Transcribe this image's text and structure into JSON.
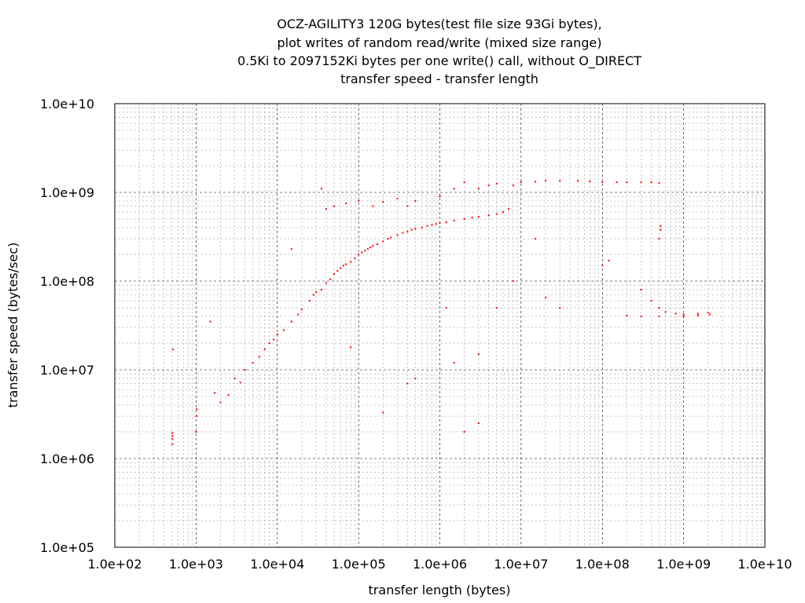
{
  "chart_data": {
    "type": "scatter",
    "title_lines": [
      "OCZ-AGILITY3 120G bytes(test file size 93Gi bytes),",
      "plot writes of random read/write (mixed size range)",
      "0.5Ki to 2097152Ki bytes per one write() call, without O_DIRECT",
      "transfer speed - transfer length"
    ],
    "xlabel": "transfer length (bytes)",
    "ylabel": "transfer speed (bytes/sec)",
    "xscale": "log",
    "yscale": "log",
    "xlim": [
      100,
      10000000000
    ],
    "ylim": [
      100000,
      10000000000
    ],
    "x_ticks": [
      {
        "value": 100,
        "label": "1.0e+02"
      },
      {
        "value": 1000,
        "label": "1.0e+03"
      },
      {
        "value": 10000,
        "label": "1.0e+04"
      },
      {
        "value": 100000,
        "label": "1.0e+05"
      },
      {
        "value": 1000000,
        "label": "1.0e+06"
      },
      {
        "value": 10000000,
        "label": "1.0e+07"
      },
      {
        "value": 100000000,
        "label": "1.0e+08"
      },
      {
        "value": 1000000000,
        "label": "1.0e+09"
      },
      {
        "value": 10000000000,
        "label": "1.0e+10"
      }
    ],
    "y_ticks": [
      {
        "value": 100000,
        "label": "1.0e+05"
      },
      {
        "value": 1000000,
        "label": "1.0e+06"
      },
      {
        "value": 10000000,
        "label": "1.0e+07"
      },
      {
        "value": 100000000,
        "label": "1.0e+08"
      },
      {
        "value": 1000000000,
        "label": "1.0e+09"
      },
      {
        "value": 10000000000,
        "label": "1.0e+10"
      }
    ],
    "grid": true,
    "point_color": "#ff0000",
    "series": [
      {
        "points": [
          [
            512,
            1800000
          ],
          [
            512,
            1650000
          ],
          [
            512,
            1950000
          ],
          [
            512,
            1450000
          ],
          [
            520,
            17000000
          ],
          [
            1000,
            2000000
          ],
          [
            1010,
            3000000
          ],
          [
            1020,
            3600000
          ],
          [
            1500,
            35000000
          ],
          [
            1700,
            5500000
          ],
          [
            2000,
            4300000
          ],
          [
            2500,
            5200000
          ],
          [
            3000,
            8000000
          ],
          [
            3500,
            7200000
          ],
          [
            4000,
            10000000
          ],
          [
            5000,
            12000000
          ],
          [
            6000,
            14000000
          ],
          [
            7000,
            17000000
          ],
          [
            8000,
            20000000
          ],
          [
            9000,
            22000000
          ],
          [
            10000,
            25000000
          ],
          [
            12000,
            28000000
          ],
          [
            15000,
            35000000
          ],
          [
            15000,
            230000000
          ],
          [
            18000,
            42000000
          ],
          [
            20000,
            48000000
          ],
          [
            25000,
            60000000
          ],
          [
            28000,
            70000000
          ],
          [
            30000,
            75000000
          ],
          [
            35000,
            80000000
          ],
          [
            35000,
            1100000000
          ],
          [
            40000,
            95000000
          ],
          [
            40000,
            650000000
          ],
          [
            45000,
            105000000
          ],
          [
            50000,
            120000000
          ],
          [
            50000,
            700000000
          ],
          [
            55000,
            130000000
          ],
          [
            60000,
            140000000
          ],
          [
            65000,
            150000000
          ],
          [
            70000,
            155000000
          ],
          [
            70000,
            750000000
          ],
          [
            80000,
            165000000
          ],
          [
            90000,
            180000000
          ],
          [
            100000,
            200000000
          ],
          [
            100000,
            800000000
          ],
          [
            110000,
            210000000
          ],
          [
            120000,
            220000000
          ],
          [
            130000,
            230000000
          ],
          [
            140000,
            240000000
          ],
          [
            150000,
            250000000
          ],
          [
            150000,
            700000000
          ],
          [
            170000,
            260000000
          ],
          [
            200000,
            280000000
          ],
          [
            200000,
            780000000
          ],
          [
            230000,
            300000000
          ],
          [
            250000,
            310000000
          ],
          [
            300000,
            330000000
          ],
          [
            300000,
            850000000
          ],
          [
            350000,
            350000000
          ],
          [
            400000,
            360000000
          ],
          [
            400000,
            700000000
          ],
          [
            450000,
            380000000
          ],
          [
            500000,
            390000000
          ],
          [
            500000,
            800000000
          ],
          [
            600000,
            400000000
          ],
          [
            700000,
            420000000
          ],
          [
            800000,
            430000000
          ],
          [
            900000,
            440000000
          ],
          [
            1000000,
            450000000
          ],
          [
            1000000,
            900000000
          ],
          [
            1200000,
            460000000
          ],
          [
            1500000,
            480000000
          ],
          [
            1500000,
            1100000000
          ],
          [
            2000000,
            500000000
          ],
          [
            2000000,
            1300000000
          ],
          [
            2500000,
            520000000
          ],
          [
            3000000,
            530000000
          ],
          [
            3000000,
            1100000000
          ],
          [
            4000000,
            550000000
          ],
          [
            4000000,
            1200000000
          ],
          [
            5000000,
            570000000
          ],
          [
            5000000,
            1250000000
          ],
          [
            6000000,
            600000000
          ],
          [
            7000000,
            650000000
          ],
          [
            8000000,
            1200000000
          ],
          [
            10000000,
            1300000000
          ],
          [
            15000000,
            1320000000
          ],
          [
            20000000,
            1350000000
          ],
          [
            30000000,
            1350000000
          ],
          [
            50000000,
            1350000000
          ],
          [
            70000000,
            1330000000
          ],
          [
            100000000,
            1300000000
          ],
          [
            150000000,
            1300000000
          ],
          [
            200000000,
            1300000000
          ],
          [
            300000000,
            1300000000
          ],
          [
            400000000,
            1300000000
          ],
          [
            500000000,
            1280000000
          ],
          [
            520000000,
            420000000
          ],
          [
            520000000,
            380000000
          ],
          [
            500000000,
            300000000
          ],
          [
            300000000,
            80000000
          ],
          [
            400000000,
            60000000
          ],
          [
            500000000,
            50000000
          ],
          [
            600000000,
            45000000
          ],
          [
            800000000,
            43000000
          ],
          [
            1000000000,
            42000000
          ],
          [
            1500000000,
            43000000
          ],
          [
            2000000000,
            44000000
          ],
          [
            2100000000,
            42000000
          ],
          [
            200000000,
            41000000
          ],
          [
            300000000,
            40000000
          ],
          [
            500000000,
            40000000
          ],
          [
            1000000000,
            40000000
          ],
          [
            1500000000,
            41000000
          ],
          [
            20000000,
            65000000
          ],
          [
            30000000,
            50000000
          ],
          [
            100000000,
            150000000
          ],
          [
            120000000,
            170000000
          ],
          [
            15000000,
            300000000
          ],
          [
            8000000,
            100000000
          ],
          [
            2000000,
            2000000
          ],
          [
            3000000,
            2500000
          ],
          [
            200000,
            3300000
          ],
          [
            500000,
            8000000
          ],
          [
            400000,
            7000000
          ],
          [
            1500000,
            12000000
          ],
          [
            3000000,
            15000000
          ],
          [
            5000000,
            50000000
          ],
          [
            1200000,
            50000000
          ],
          [
            80000,
            18000000
          ]
        ]
      }
    ]
  }
}
